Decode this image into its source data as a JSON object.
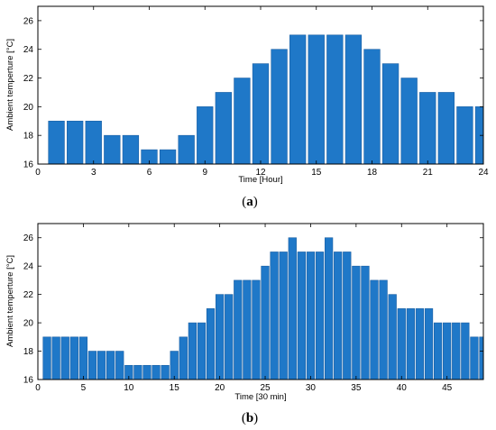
{
  "colors": {
    "bar": "#1f78c8",
    "bar_edge": "#1a5fa3",
    "axis": "#000000",
    "background": "#ffffff"
  },
  "chart_data": [
    {
      "type": "bar",
      "panel_label": "a",
      "xlabel": "Time [Hour]",
      "ylabel": "Ambient temperture [°C]",
      "xlim": [
        0,
        24
      ],
      "ylim": [
        16,
        27
      ],
      "xticks": [
        0,
        3,
        6,
        9,
        12,
        15,
        18,
        21,
        24
      ],
      "yticks": [
        16,
        18,
        20,
        22,
        24,
        26
      ],
      "x": [
        1,
        2,
        3,
        4,
        5,
        6,
        7,
        8,
        9,
        10,
        11,
        12,
        13,
        14,
        15,
        16,
        17,
        18,
        19,
        20,
        21,
        22,
        23,
        24
      ],
      "values": [
        19,
        19,
        19,
        18,
        18,
        17,
        17,
        18,
        20,
        21,
        22,
        23,
        24,
        25,
        25,
        25,
        25,
        24,
        23,
        22,
        21,
        21,
        20,
        20
      ]
    },
    {
      "type": "bar",
      "panel_label": "b",
      "xlabel": "Time [30 min]",
      "ylabel": "Ambient temperture [°C]",
      "xlim": [
        0,
        49
      ],
      "ylim": [
        16,
        27
      ],
      "xticks": [
        0,
        5,
        10,
        15,
        20,
        25,
        30,
        35,
        40,
        45
      ],
      "yticks": [
        16,
        18,
        20,
        22,
        24,
        26
      ],
      "x": [
        1,
        2,
        3,
        4,
        5,
        6,
        7,
        8,
        9,
        10,
        11,
        12,
        13,
        14,
        15,
        16,
        17,
        18,
        19,
        20,
        21,
        22,
        23,
        24,
        25,
        26,
        27,
        28,
        29,
        30,
        31,
        32,
        33,
        34,
        35,
        36,
        37,
        38,
        39,
        40,
        41,
        42,
        43,
        44,
        45,
        46,
        47,
        48,
        49
      ],
      "values": [
        19,
        19,
        19,
        19,
        19,
        18,
        18,
        18,
        18,
        17,
        17,
        17,
        17,
        17,
        18,
        19,
        20,
        20,
        21,
        22,
        22,
        23,
        23,
        23,
        24,
        25,
        25,
        26,
        25,
        25,
        25,
        26,
        25,
        25,
        24,
        24,
        23,
        23,
        22,
        21,
        21,
        21,
        21,
        20,
        20,
        20,
        20,
        19,
        19
      ]
    }
  ]
}
